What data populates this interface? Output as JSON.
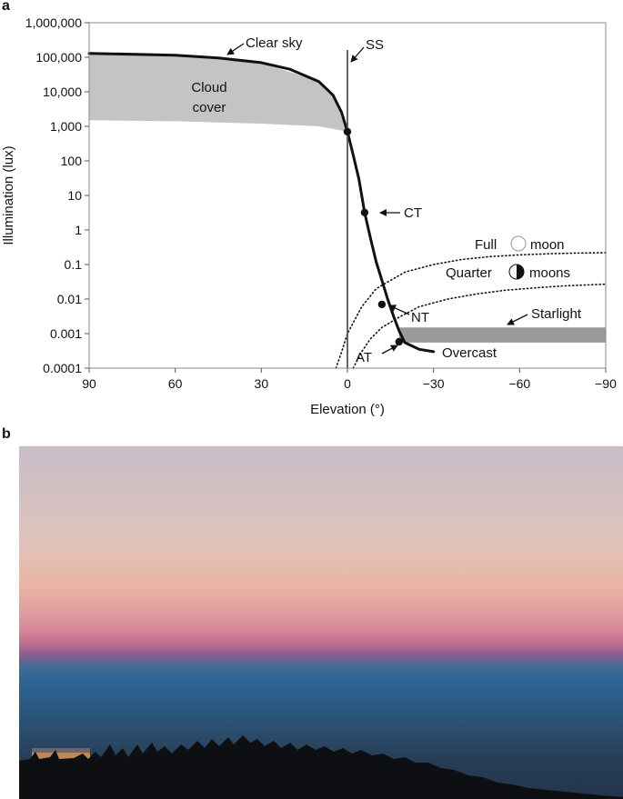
{
  "panels": {
    "a": "a",
    "b": "b"
  },
  "chart_data": {
    "type": "line",
    "xlabel": "Elevation (°)",
    "ylabel": "Illumination (lux)",
    "xlim": [
      90,
      -90
    ],
    "ylim": [
      0.0001,
      1000000
    ],
    "yscale": "log",
    "grid": false,
    "x_ticks": [
      90,
      60,
      30,
      0,
      -30,
      -60,
      -90
    ],
    "x_tick_labels": [
      "90",
      "60",
      "30",
      "0",
      "−30",
      "−60",
      "−90"
    ],
    "y_ticks": [
      0.0001,
      0.001,
      0.01,
      0.1,
      1,
      10,
      100,
      1000,
      10000,
      100000,
      1000000
    ],
    "y_tick_labels": [
      "0.0001",
      "0.001",
      "0.01",
      "0.1",
      "1",
      "10",
      "100",
      "1,000",
      "10,000",
      "100,000",
      "1,000,000"
    ],
    "series": [
      {
        "name": "Clear sky",
        "style": "solid",
        "x": [
          90,
          60,
          45,
          30,
          20,
          10,
          5,
          2,
          0,
          -2,
          -4,
          -6,
          -8,
          -10,
          -12,
          -14,
          -16,
          -18,
          -20,
          -25,
          -30
        ],
        "y": [
          130000,
          115000,
          95000,
          70000,
          45000,
          20000,
          8000,
          2500,
          700,
          150,
          30,
          3.2,
          0.6,
          0.12,
          0.035,
          0.01,
          0.0033,
          0.0012,
          0.00055,
          0.00035,
          0.0003
        ]
      },
      {
        "name": "Full moon",
        "style": "dotted",
        "x": [
          4,
          2,
          0,
          -5,
          -10,
          -20,
          -30,
          -40,
          -50,
          -60,
          -70,
          -80,
          -90
        ],
        "y": [
          0.0001,
          0.0003,
          0.001,
          0.006,
          0.02,
          0.06,
          0.1,
          0.14,
          0.17,
          0.19,
          0.205,
          0.215,
          0.22
        ]
      },
      {
        "name": "Quarter moons",
        "style": "dotted",
        "x": [
          -2,
          -5,
          -8,
          -12,
          -18,
          -25,
          -35,
          -45,
          -55,
          -65,
          -75,
          -90
        ],
        "y": [
          0.0001,
          0.0003,
          0.0007,
          0.0015,
          0.003,
          0.006,
          0.01,
          0.014,
          0.018,
          0.021,
          0.024,
          0.027
        ]
      }
    ],
    "bands": [
      {
        "name": "Cloud cover",
        "x": [
          90,
          60,
          30,
          10,
          5,
          0
        ],
        "upper": [
          130000,
          115000,
          70000,
          20000,
          8000,
          700
        ],
        "lower": [
          1500,
          1400,
          1200,
          1000,
          850,
          700
        ]
      },
      {
        "name": "Starlight",
        "x": [
          -18,
          -90
        ],
        "upper": [
          0.0015,
          0.0015
        ],
        "lower": [
          0.00055,
          0.00055
        ]
      }
    ],
    "markers": [
      {
        "label": "CT",
        "x": -6,
        "y": 3.2
      },
      {
        "label": "NT",
        "x": -12,
        "y": 0.007
      },
      {
        "label": "AT",
        "x": -18,
        "y": 0.00058
      },
      {
        "label": "",
        "x": 0,
        "y": 700
      }
    ],
    "vertical_line": {
      "label": "SS",
      "x": 0
    },
    "annotations": {
      "clear_sky": "Clear sky",
      "cloud_line1": "Cloud",
      "cloud_line2": "cover",
      "ss": "SS",
      "ct": "CT",
      "nt": "NT",
      "at": "AT",
      "full": "Full",
      "full_moon": "moon",
      "quarter": "Quarter",
      "quarter_moons": "moons",
      "starlight": "Starlight",
      "overcast": "Overcast"
    }
  }
}
